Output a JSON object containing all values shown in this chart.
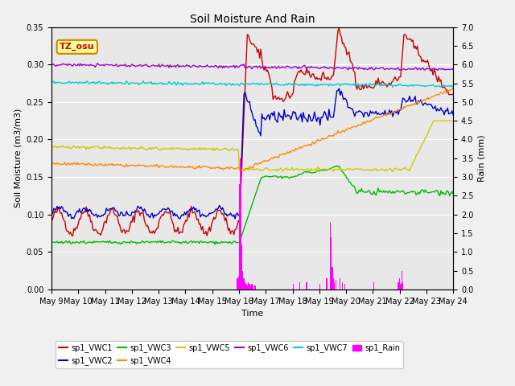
{
  "title": "Soil Moisture And Rain",
  "xlabel": "Time",
  "ylabel_left": "Soil Moisture (m3/m3)",
  "ylabel_right": "Rain (mm)",
  "station_label": "TZ_osu",
  "ylim_left": [
    0.0,
    0.35
  ],
  "ylim_right": [
    0.0,
    7.0
  ],
  "yticks_left": [
    0.0,
    0.05,
    0.1,
    0.15,
    0.2,
    0.25,
    0.3,
    0.35
  ],
  "yticks_right": [
    0.0,
    0.5,
    1.0,
    1.5,
    2.0,
    2.5,
    3.0,
    3.5,
    4.0,
    4.5,
    5.0,
    5.5,
    6.0,
    6.5,
    7.0
  ],
  "xtick_labels": [
    "May 9",
    "May 10",
    "May 11",
    "May 12",
    "May 13",
    "May 14",
    "May 15",
    "May 16",
    "May 17",
    "May 18",
    "May 19",
    "May 20",
    "May 21",
    "May 22",
    "May 23",
    "May 24"
  ],
  "colors": {
    "VWC1": "#cc0000",
    "VWC2": "#0000cc",
    "VWC3": "#00bb00",
    "VWC4": "#ff8800",
    "VWC5": "#cccc00",
    "VWC6": "#9900cc",
    "VWC7": "#00cccc",
    "Rain": "#ff00ff"
  },
  "bg_color": "#e8e8e8",
  "grid_color": "#ffffff",
  "fig_bg": "#f0f0f0"
}
